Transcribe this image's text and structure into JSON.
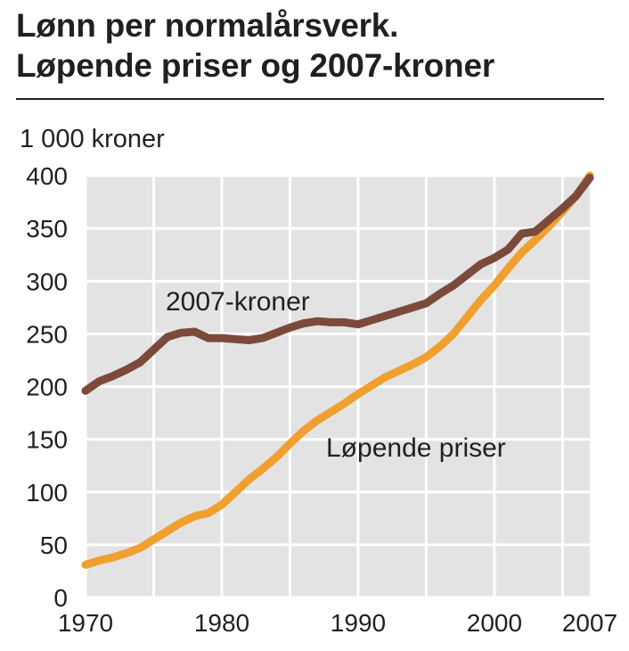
{
  "header": {
    "title_line1": "Lønn per normalårsverk.",
    "title_line2": "Løpende priser og 2007-kroner"
  },
  "colors": {
    "kroner2007": "#7b4a3a",
    "lopende": "#f0a02e",
    "grid": "#ffffff",
    "plot_bg": "#e3e3e3"
  },
  "chart_data": {
    "type": "line",
    "title": "Lønn per normalårsverk. Løpende priser og 2007-kroner",
    "ylabel": "1 000 kroner",
    "xlabel": "",
    "ylim": [
      0,
      400
    ],
    "xlim": [
      1970,
      2007
    ],
    "y_ticks": [
      "0",
      "50",
      "100",
      "150",
      "200",
      "250",
      "300",
      "350",
      "400"
    ],
    "x_ticks": [
      "1970",
      "1980",
      "1990",
      "2000",
      "2007"
    ],
    "grid": true,
    "x": [
      1970,
      1971,
      1972,
      1973,
      1974,
      1975,
      1976,
      1977,
      1978,
      1979,
      1980,
      1981,
      1982,
      1983,
      1984,
      1985,
      1986,
      1987,
      1988,
      1989,
      1990,
      1991,
      1992,
      1993,
      1994,
      1995,
      1996,
      1997,
      1998,
      1999,
      2000,
      2001,
      2002,
      2003,
      2004,
      2005,
      2006,
      2007
    ],
    "series": [
      {
        "name": "2007-kroner",
        "values": [
          196,
          205,
          210,
          216,
          223,
          235,
          247,
          251,
          252,
          246,
          246,
          245,
          244,
          246,
          251,
          256,
          260,
          262,
          261,
          261,
          259,
          263,
          267,
          271,
          275,
          279,
          288,
          296,
          306,
          316,
          322,
          330,
          345,
          347,
          358,
          369,
          381,
          398
        ]
      },
      {
        "name": "Løpende priser",
        "values": [
          31,
          35,
          38,
          42,
          47,
          55,
          63,
          71,
          77,
          80,
          88,
          100,
          112,
          122,
          133,
          146,
          158,
          168,
          176,
          184,
          193,
          201,
          209,
          215,
          221,
          228,
          238,
          250,
          266,
          282,
          296,
          312,
          327,
          339,
          352,
          366,
          381,
          400
        ]
      }
    ],
    "annotations": [
      {
        "text": "2007-kroner",
        "series": "2007-kroner"
      },
      {
        "text": "Løpende priser",
        "series": "Løpende priser"
      }
    ]
  }
}
